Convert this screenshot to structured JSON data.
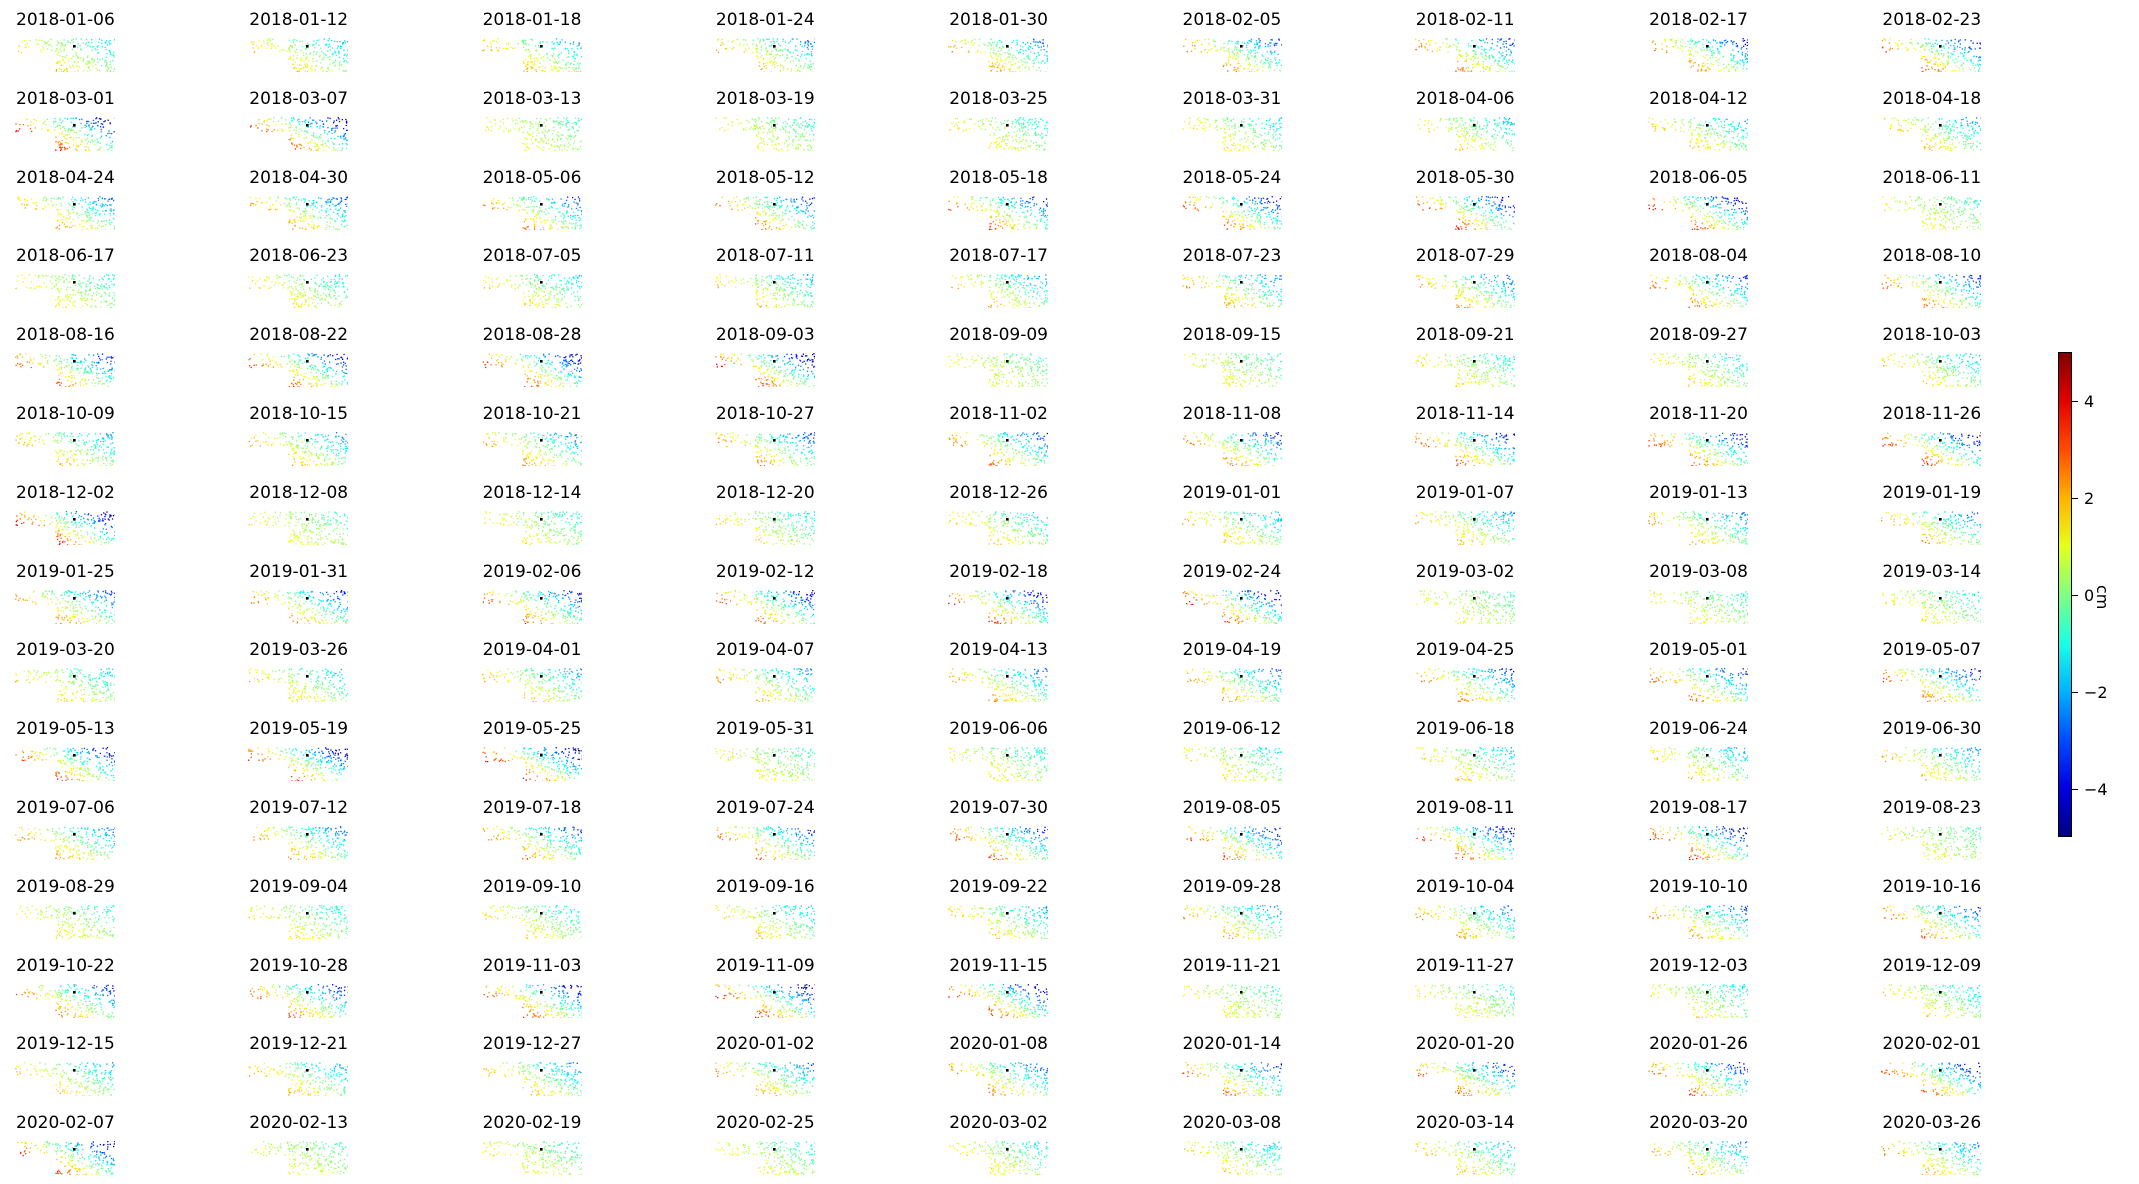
{
  "chart_data": {
    "type": "heatmap",
    "panel_titles": [
      "2018-01-06",
      "2018-01-12",
      "2018-01-18",
      "2018-01-24",
      "2018-01-30",
      "2018-02-05",
      "2018-02-11",
      "2018-02-17",
      "2018-02-23",
      "2018-03-01",
      "2018-03-07",
      "2018-03-13",
      "2018-03-19",
      "2018-03-25",
      "2018-03-31",
      "2018-04-06",
      "2018-04-12",
      "2018-04-18",
      "2018-04-24",
      "2018-04-30",
      "2018-05-06",
      "2018-05-12",
      "2018-05-18",
      "2018-05-24",
      "2018-05-30",
      "2018-06-05",
      "2018-06-11",
      "2018-06-17",
      "2018-06-23",
      "2018-07-05",
      "2018-07-11",
      "2018-07-17",
      "2018-07-23",
      "2018-07-29",
      "2018-08-04",
      "2018-08-10",
      "2018-08-16",
      "2018-08-22",
      "2018-08-28",
      "2018-09-03",
      "2018-09-09",
      "2018-09-15",
      "2018-09-21",
      "2018-09-27",
      "2018-10-03",
      "2018-10-09",
      "2018-10-15",
      "2018-10-21",
      "2018-10-27",
      "2018-11-02",
      "2018-11-08",
      "2018-11-14",
      "2018-11-20",
      "2018-11-26",
      "2018-12-02",
      "2018-12-08",
      "2018-12-14",
      "2018-12-20",
      "2018-12-26",
      "2019-01-01",
      "2019-01-07",
      "2019-01-13",
      "2019-01-19",
      "2019-01-25",
      "2019-01-31",
      "2019-02-06",
      "2019-02-12",
      "2019-02-18",
      "2019-02-24",
      "2019-03-02",
      "2019-03-08",
      "2019-03-14",
      "2019-03-20",
      "2019-03-26",
      "2019-04-01",
      "2019-04-07",
      "2019-04-13",
      "2019-04-19",
      "2019-04-25",
      "2019-05-01",
      "2019-05-07",
      "2019-05-13",
      "2019-05-19",
      "2019-05-25",
      "2019-05-31",
      "2019-06-06",
      "2019-06-12",
      "2019-06-18",
      "2019-06-24",
      "2019-06-30",
      "2019-07-06",
      "2019-07-12",
      "2019-07-18",
      "2019-07-24",
      "2019-07-30",
      "2019-08-05",
      "2019-08-11",
      "2019-08-17",
      "2019-08-23",
      "2019-08-29",
      "2019-09-04",
      "2019-09-10",
      "2019-09-16",
      "2019-09-22",
      "2019-09-28",
      "2019-10-04",
      "2019-10-10",
      "2019-10-16",
      "2019-10-22",
      "2019-10-28",
      "2019-11-03",
      "2019-11-09",
      "2019-11-15",
      "2019-11-21",
      "2019-11-27",
      "2019-12-03",
      "2019-12-09",
      "2019-12-15",
      "2019-12-21",
      "2019-12-27",
      "2020-01-02",
      "2020-01-08",
      "2020-01-14",
      "2020-01-20",
      "2020-01-26",
      "2020-02-01",
      "2020-02-07",
      "2020-02-13",
      "2020-02-19",
      "2020-02-25",
      "2020-03-02",
      "2020-03-08",
      "2020-03-14",
      "2020-03-20",
      "2020-03-26"
    ],
    "colormap": "jet",
    "colorbar": {
      "label": "cm",
      "vmin": -5,
      "vmax": 5,
      "ticks": [
        "4",
        "2",
        "0",
        "−2",
        "−4"
      ],
      "tick_values": [
        4,
        2,
        0,
        -2,
        -4
      ]
    }
  }
}
